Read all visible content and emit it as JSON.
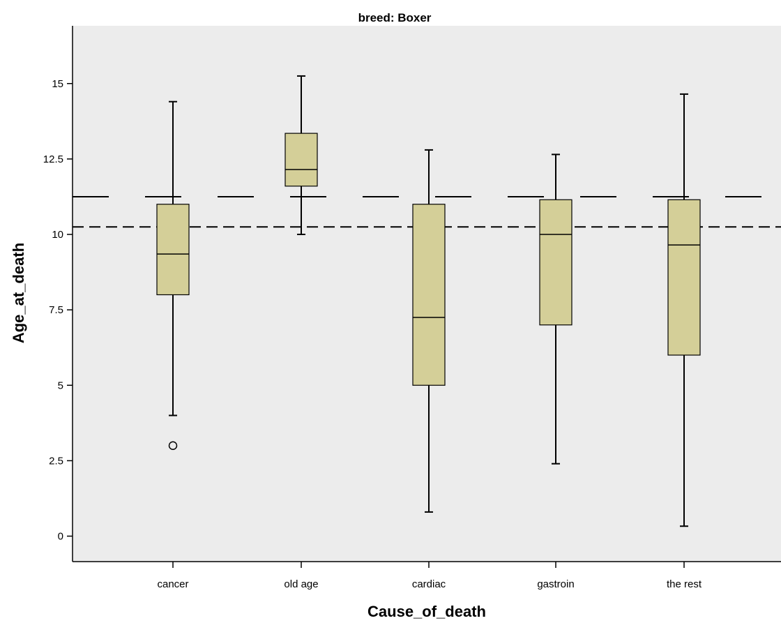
{
  "chart_data": {
    "type": "boxplot",
    "title": "breed: Boxer",
    "xlabel": "Cause_of_death",
    "ylabel": "Age_at_death",
    "ylim": [
      -0.8,
      17.0
    ],
    "yticks": [
      0,
      2.5,
      5,
      7.5,
      10,
      12.5,
      15
    ],
    "ytick_labels": [
      "0",
      "2.5",
      "5",
      "7.5",
      "10",
      "12.5",
      "15"
    ],
    "categories": [
      "cancer",
      "old age",
      "cardiac",
      "gastroin",
      "the rest"
    ],
    "boxes": [
      {
        "category": "cancer",
        "whisker_low": 4.0,
        "q1": 8.0,
        "median": 9.35,
        "q3": 11.0,
        "whisker_high": 14.4,
        "outliers": [
          3.0
        ]
      },
      {
        "category": "old age",
        "whisker_low": 10.0,
        "q1": 11.6,
        "median": 12.15,
        "q3": 13.35,
        "whisker_high": 15.25,
        "outliers": []
      },
      {
        "category": "cardiac",
        "whisker_low": 0.8,
        "q1": 5.0,
        "median": 7.25,
        "q3": 11.0,
        "whisker_high": 12.8,
        "outliers": []
      },
      {
        "category": "gastroin",
        "whisker_low": 2.4,
        "q1": 7.0,
        "median": 10.0,
        "q3": 11.15,
        "whisker_high": 12.65,
        "outliers": []
      },
      {
        "category": "the rest",
        "whisker_low": 0.33,
        "q1": 6.0,
        "median": 9.65,
        "q3": 11.15,
        "whisker_high": 14.65,
        "outliers": []
      }
    ],
    "reference_lines": [
      {
        "y": 11.25,
        "style": "long-dash"
      },
      {
        "y": 10.25,
        "style": "dash"
      }
    ],
    "colors": {
      "plot_background": "#ececec",
      "box_fill": "#d4cf98",
      "line": "#000000"
    },
    "grid": false,
    "legend": "none"
  }
}
